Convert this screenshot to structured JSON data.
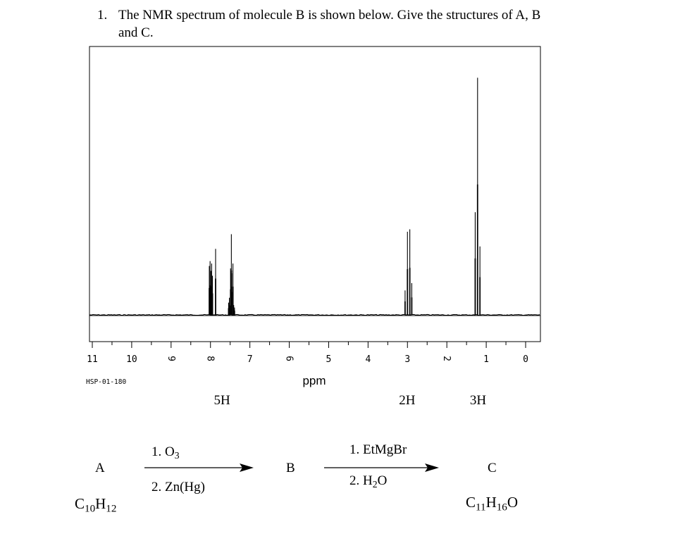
{
  "question": {
    "number": "1.",
    "line1": "The NMR spectrum of molecule B is shown below.  Give the structures of A, B",
    "line2": "and C."
  },
  "spectrum_code": "HSP-01-180",
  "chart_data": {
    "type": "line",
    "xlabel": "ppm",
    "xlim": [
      11,
      0
    ],
    "x_reversed": true,
    "ticks": [
      11,
      10,
      9,
      8,
      7,
      6,
      5,
      4,
      3,
      2,
      1,
      0
    ],
    "ylabel": "",
    "grid": false,
    "peaks": [
      {
        "group": "aromatic",
        "ppm": [
          8.03,
          8.01,
          7.99,
          7.97,
          7.95,
          7.87,
          7.54,
          7.52,
          7.49,
          7.47,
          7.46,
          7.43,
          7.41,
          7.39
        ],
        "intensity": [
          0.2,
          0.22,
          0.18,
          0.21,
          0.16,
          0.27,
          0.05,
          0.07,
          0.19,
          0.33,
          0.17,
          0.21,
          0.04,
          0.03
        ]
      },
      {
        "group": "quartet",
        "ppm": [
          3.06,
          3.0,
          2.94,
          2.89
        ],
        "intensity": [
          0.1,
          0.34,
          0.35,
          0.13
        ]
      },
      {
        "group": "triplet",
        "ppm": [
          1.28,
          1.22,
          1.16
        ],
        "intensity": [
          0.42,
          0.97,
          0.28
        ]
      }
    ],
    "integrations": [
      {
        "label": "5H",
        "ppm": 7.7
      },
      {
        "label": "2H",
        "ppm": 3.0
      },
      {
        "label": "3H",
        "ppm": 1.2
      }
    ]
  },
  "scheme": {
    "compound_a": "A",
    "formula_a": {
      "c": "C",
      "c_sub": "10",
      "h": "H",
      "h_sub": "12"
    },
    "step1_line1": {
      "text": "1. O",
      "sub": "3"
    },
    "step1_line2": "2. Zn(Hg)",
    "compound_b": "B",
    "step2_line1": "1. EtMgBr",
    "step2_line2": {
      "text": "2. H",
      "sub": "2",
      "tail": "O"
    },
    "compound_c": "C",
    "formula_c": {
      "c": "C",
      "c_sub": "11",
      "h": "H",
      "h_sub": "16",
      "o": "O"
    }
  }
}
